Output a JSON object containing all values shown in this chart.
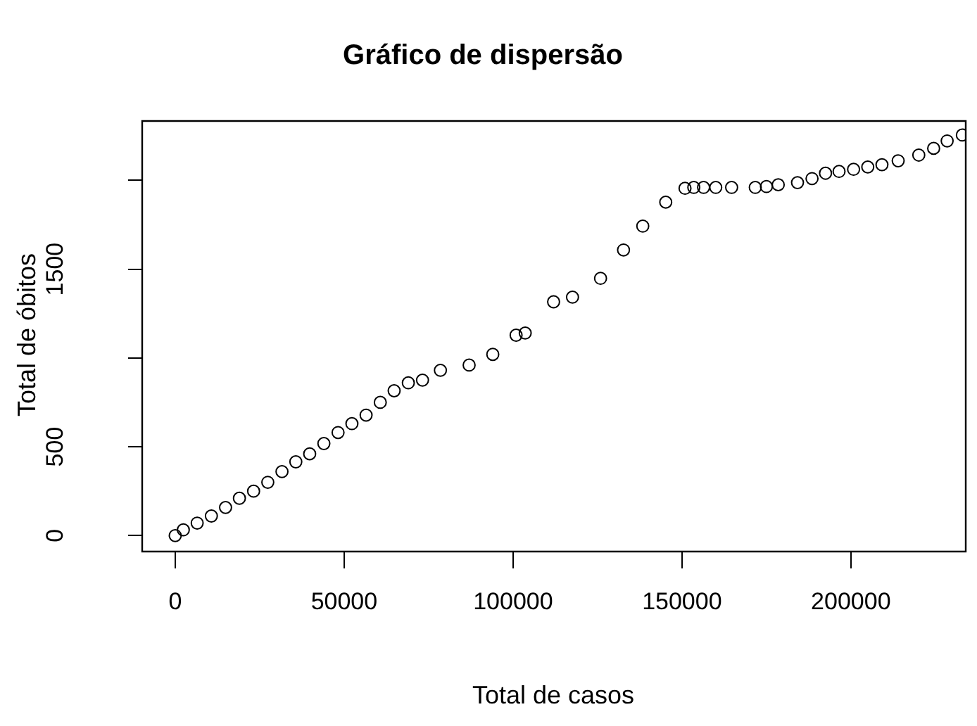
{
  "chart_data": {
    "type": "scatter",
    "title": "Gráfico de dispersão",
    "xlabel": "Total de casos",
    "ylabel": "Total de óbitos",
    "x": [
      0,
      2400,
      6500,
      10700,
      14900,
      19000,
      23200,
      27400,
      31600,
      35700,
      39800,
      44000,
      48200,
      52300,
      56500,
      60700,
      64800,
      69000,
      73200,
      78500,
      87000,
      94000,
      100900,
      103600,
      112000,
      117600,
      125900,
      132700,
      138400,
      145200,
      150900,
      153500,
      156400,
      160000,
      164700,
      171700,
      175000,
      178500,
      184200,
      188500,
      192500,
      196500,
      200800,
      205000,
      209200,
      214000,
      220100,
      224500,
      228500,
      233000
    ],
    "series": [
      {
        "color": "#000000",
        "values": [
          0,
          32,
          70,
          110,
          158,
          210,
          250,
          300,
          360,
          415,
          460,
          518,
          580,
          630,
          678,
          750,
          815,
          860,
          875,
          930,
          960,
          1020,
          1128,
          1140,
          1316,
          1342,
          1448,
          1608,
          1742,
          1877,
          1955,
          1960,
          1960,
          1960,
          1960,
          1960,
          1965,
          1975,
          1987,
          2010,
          2040,
          2050,
          2062,
          2075,
          2088,
          2110,
          2142,
          2180,
          2222,
          2255
        ]
      }
    ],
    "marker": "circle",
    "grid": false,
    "legend": false,
    "xlim": [
      -9780,
      234000
    ],
    "ylim": [
      -90,
      2334
    ],
    "xticks": [
      0,
      50000,
      100000,
      150000,
      200000
    ],
    "yticks": [
      0,
      500,
      {
        "value": 1000,
        "label": null
      },
      1500,
      {
        "value": 2000,
        "label": null
      }
    ]
  }
}
